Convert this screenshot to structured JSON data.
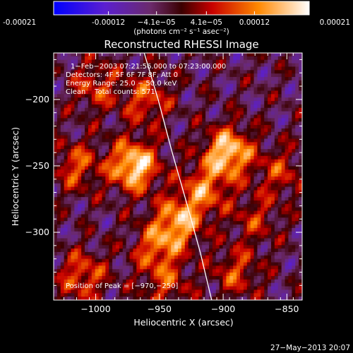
{
  "chart_data": {
    "type": "heatmap",
    "title": "Reconstructed RHESSI Image",
    "xlabel": "Heliocentric X (arcsec)",
    "ylabel": "Heliocentric Y (arcsec)",
    "xlim": [
      -1033,
      -838
    ],
    "ylim": [
      -351,
      -165
    ],
    "x_ticks": [
      -1000,
      -950,
      -900,
      -850
    ],
    "y_ticks": [
      -200,
      -250,
      -300
    ],
    "x_tick_labels": [
      "−1000",
      "−950",
      "−900",
      "−850"
    ],
    "y_tick_labels": [
      "−200",
      "−250",
      "−300"
    ],
    "colorbar": {
      "min": -0.00021,
      "max": 0.00021,
      "ticks": [
        -0.00021,
        -0.00012,
        -4.1e-05,
        4.1e-05,
        0.00012,
        0.00021
      ],
      "tick_labels": [
        "-0.00021",
        "-0.00012",
        "−4.1e−05",
        "4.1e−05",
        "0.00012",
        "0.00021"
      ],
      "units_label": "(photons cm⁻² s⁻¹ asec⁻²)"
    },
    "annotations": [
      "1−Feb−2003 07:21:56.000 to 07:23:00.000",
      "Detectors: 4F 5F 6F 7F 8F, Att 0",
      "Energy Range: 25.0 − 50.0 keV",
      "Clean    Total counts: 571.",
      "Position of Peak = [−970,−250]"
    ],
    "limb_curve": [
      [
        -962,
        -165
      ],
      [
        -951,
        -200
      ],
      [
        -940,
        -240
      ],
      [
        -928,
        -280
      ],
      [
        -918,
        -315
      ],
      [
        -909,
        -351
      ]
    ],
    "sources": [
      {
        "x": -970,
        "y": -250,
        "amp": 1.0
      },
      {
        "x": -896,
        "y": -240,
        "amp": 0.95
      },
      {
        "x": -935,
        "y": -292,
        "amp": 0.75
      },
      {
        "x": -915,
        "y": -268,
        "amp": 0.6
      },
      {
        "x": -952,
        "y": -312,
        "amp": 0.55
      },
      {
        "x": -960,
        "y": -200,
        "amp": 0.5
      },
      {
        "x": -1010,
        "y": -333,
        "amp": 0.55
      },
      {
        "x": -890,
        "y": -330,
        "amp": 0.45
      },
      {
        "x": -1015,
        "y": -250,
        "amp": 0.5
      },
      {
        "x": -855,
        "y": -255,
        "amp": 0.4
      },
      {
        "x": -1000,
        "y": -190,
        "amp": 0.45
      },
      {
        "x": -945,
        "y": -340,
        "amp": 0.4
      },
      {
        "x": -875,
        "y": -290,
        "amp": 0.35
      }
    ]
  },
  "footer": {
    "timestamp": "27−May−2013 20:07"
  }
}
